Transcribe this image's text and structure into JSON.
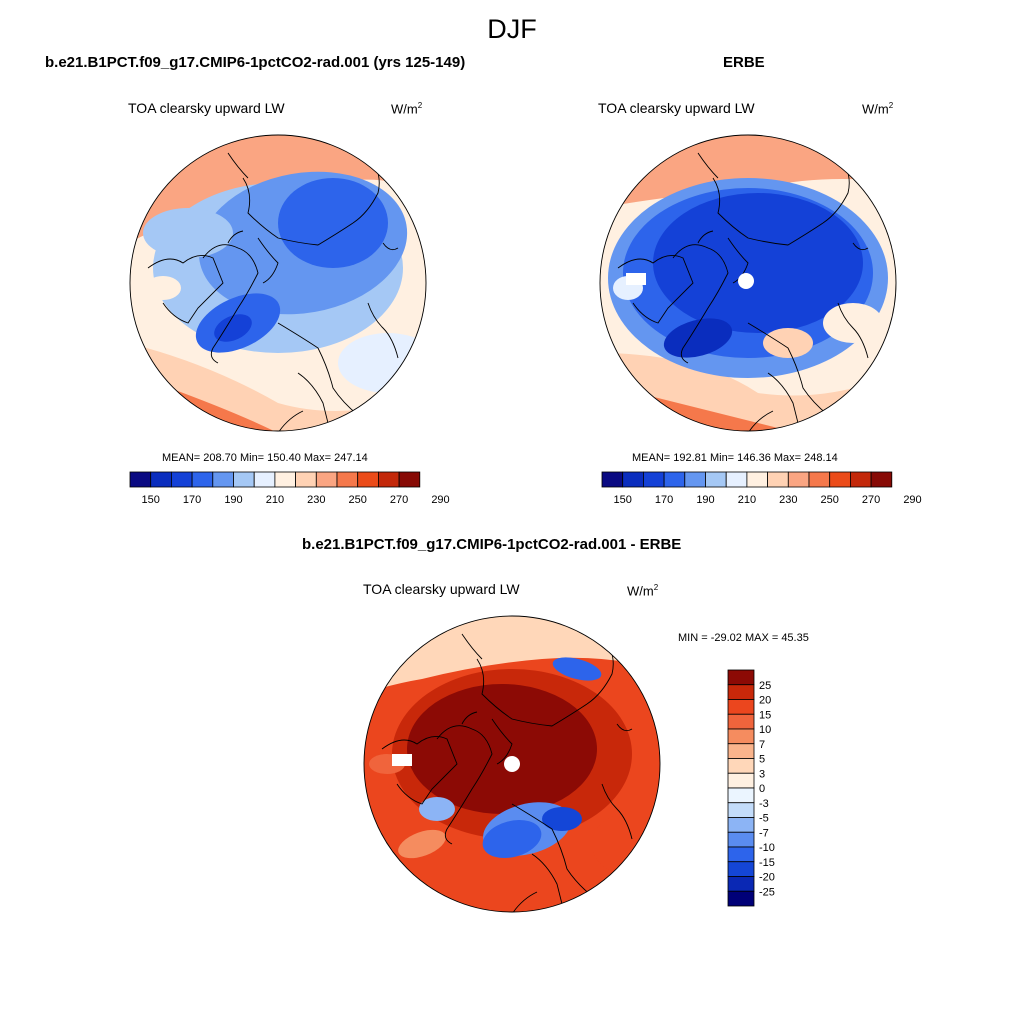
{
  "season": "DJF",
  "colors": {
    "abs_scale": [
      "#0a0a82",
      "#0a2dbe",
      "#1441d7",
      "#2d64eb",
      "#6496f0",
      "#a5c8f5",
      "#e6f0ff",
      "#fff0e1",
      "#ffd2b4",
      "#faa582",
      "#f5784b",
      "#eb4b19",
      "#c3280a",
      "#870a05"
    ],
    "diff_scale": [
      "#000078",
      "#0a28b4",
      "#1446d7",
      "#2d64eb",
      "#5a8cf0",
      "#8cb4f5",
      "#c3dcfa",
      "#ebf5ff",
      "#fff0e1",
      "#ffd7b9",
      "#fab48c",
      "#f58c5f",
      "#f0643c",
      "#eb461e",
      "#c8280a",
      "#8c0a05"
    ],
    "land_mask": "#ffffff",
    "coast": "#000000"
  },
  "panels": [
    {
      "id": "model",
      "title": "b.e21.B1PCT.f09_g17.CMIP6-1pctCO2-rad.001 (yrs 125-149)",
      "field": "TOA clearsky upward LW",
      "units_base": "W/m",
      "units_exp": "2",
      "stats": "MEAN= 208.70  Min= 150.40  Max= 247.14",
      "colorbar_ticks": [
        "150",
        "170",
        "190",
        "210",
        "230",
        "250",
        "270",
        "290"
      ]
    },
    {
      "id": "obs",
      "title": "ERBE",
      "field": "TOA clearsky upward LW",
      "units_base": "W/m",
      "units_exp": "2",
      "stats": "MEAN= 192.81  Min= 146.36  Max= 248.14",
      "colorbar_ticks": [
        "150",
        "170",
        "190",
        "210",
        "230",
        "250",
        "270",
        "290"
      ]
    },
    {
      "id": "diff",
      "title": "b.e21.B1PCT.f09_g17.CMIP6-1pctCO2-rad.001 - ERBE",
      "field": "TOA clearsky upward LW",
      "units_base": "W/m",
      "units_exp": "2",
      "stats": "MIN = -29.02 MAX =  45.35",
      "colorbar_ticks": [
        "25",
        "20",
        "15",
        "10",
        "7",
        "5",
        "3",
        "0",
        "-3",
        "-5",
        "-7",
        "-10",
        "-15",
        "-20",
        "-25"
      ]
    }
  ],
  "chart_data": [
    {
      "type": "heatmap",
      "projection": "north polar stereographic",
      "title": "b.e21.B1PCT.f09_g17.CMIP6-1pctCO2-rad.001 (yrs 125-149)",
      "variable": "TOA clearsky upward LW",
      "units": "W/m2",
      "mean": 208.7,
      "min": 150.4,
      "max": 247.14,
      "contour_levels": [
        150,
        160,
        170,
        180,
        190,
        200,
        210,
        220,
        230,
        240,
        250,
        260,
        270,
        280,
        290
      ],
      "colorbar_labels": [
        150,
        170,
        190,
        210,
        230,
        250,
        270,
        290
      ]
    },
    {
      "type": "heatmap",
      "projection": "north polar stereographic",
      "title": "ERBE",
      "variable": "TOA clearsky upward LW",
      "units": "W/m2",
      "mean": 192.81,
      "min": 146.36,
      "max": 248.14,
      "contour_levels": [
        150,
        160,
        170,
        180,
        190,
        200,
        210,
        220,
        230,
        240,
        250,
        260,
        270,
        280,
        290
      ],
      "colorbar_labels": [
        150,
        170,
        190,
        210,
        230,
        250,
        270,
        290
      ]
    },
    {
      "type": "heatmap",
      "projection": "north polar stereographic",
      "title": "b.e21.B1PCT.f09_g17.CMIP6-1pctCO2-rad.001 - ERBE",
      "variable": "TOA clearsky upward LW",
      "units": "W/m2",
      "min": -29.02,
      "max": 45.35,
      "contour_levels": [
        -25,
        -20,
        -15,
        -10,
        -7,
        -5,
        -3,
        0,
        3,
        5,
        7,
        10,
        15,
        20,
        25
      ],
      "colorbar_labels": [
        25,
        20,
        15,
        10,
        7,
        5,
        3,
        0,
        -3,
        -5,
        -7,
        -10,
        -15,
        -20,
        -25
      ]
    }
  ]
}
